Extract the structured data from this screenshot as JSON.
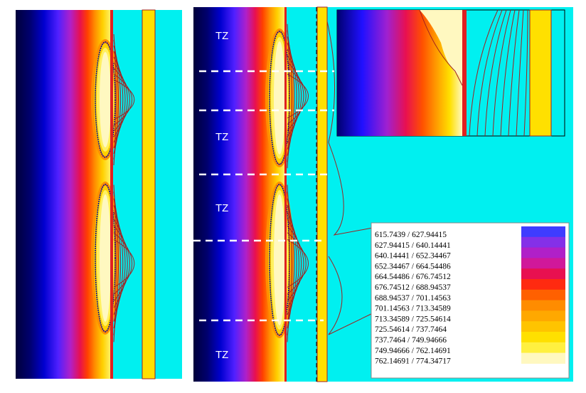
{
  "zone_labels": [
    "TZ",
    "TZ",
    "TZ",
    "TZ"
  ],
  "legend": {
    "rows": [
      {
        "range": "615.7439 / 627.94415",
        "color": "#3f3cff"
      },
      {
        "range": "627.94415 / 640.14441",
        "color": "#8430e8"
      },
      {
        "range": "640.14441 / 652.34467",
        "color": "#b020c8"
      },
      {
        "range": "652.34467 / 664.54486",
        "color": "#d0189a"
      },
      {
        "range": "664.54486 / 676.74512",
        "color": "#e81050"
      },
      {
        "range": "676.74512 / 688.94537",
        "color": "#ff2a10"
      },
      {
        "range": "688.94537 / 701.14563",
        "color": "#ff6000"
      },
      {
        "range": "701.14563 / 713.34589",
        "color": "#ff8c00"
      },
      {
        "range": "713.34589 / 725.54614",
        "color": "#ffa800"
      },
      {
        "range": "725.54614 / 737.7464",
        "color": "#ffc400"
      },
      {
        "range": "737.7464 / 749.94666",
        "color": "#ffe000"
      },
      {
        "range": "749.94666 / 762.14691",
        "color": "#fff040"
      },
      {
        "range": "762.14691 / 774.34717",
        "color": "#fff8c0"
      }
    ]
  }
}
